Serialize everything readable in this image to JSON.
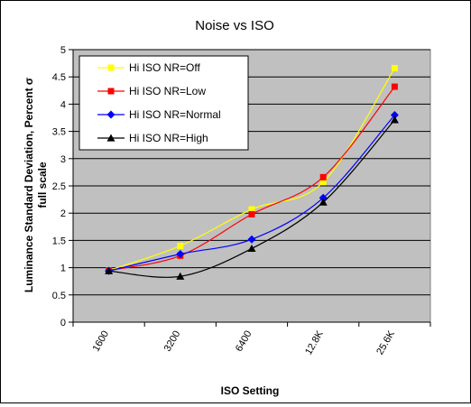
{
  "chart_data": {
    "type": "line",
    "title": "Noise vs ISO",
    "xlabel": "ISO Setting",
    "ylabel_lines": [
      "Luminance Standard Deviation, Percent σ",
      "full scale"
    ],
    "categories": [
      "1600",
      "3200",
      "6400",
      "12.8K",
      "25.6K"
    ],
    "ylim": [
      0,
      5
    ],
    "yticks": [
      "0",
      "0.5",
      "1",
      "1.5",
      "2",
      "2.5",
      "3",
      "3.5",
      "4",
      "4.5",
      "5"
    ],
    "grid": true,
    "legend_position": "top-left",
    "series": [
      {
        "name": "Hi ISO NR=Off",
        "color": "#ffff00",
        "marker": "square",
        "values": [
          0.95,
          1.4,
          2.07,
          2.57,
          4.66
        ]
      },
      {
        "name": "Hi ISO NR=Low",
        "color": "#ff0000",
        "marker": "square",
        "values": [
          0.95,
          1.22,
          1.98,
          2.66,
          4.32
        ]
      },
      {
        "name": "Hi ISO NR=Normal",
        "color": "#0000ff",
        "marker": "diamond",
        "values": [
          0.94,
          1.25,
          1.52,
          2.28,
          3.8
        ]
      },
      {
        "name": "Hi ISO NR=High",
        "color": "#000000",
        "marker": "triangle",
        "values": [
          0.94,
          0.84,
          1.35,
          2.2,
          3.71
        ]
      }
    ]
  }
}
